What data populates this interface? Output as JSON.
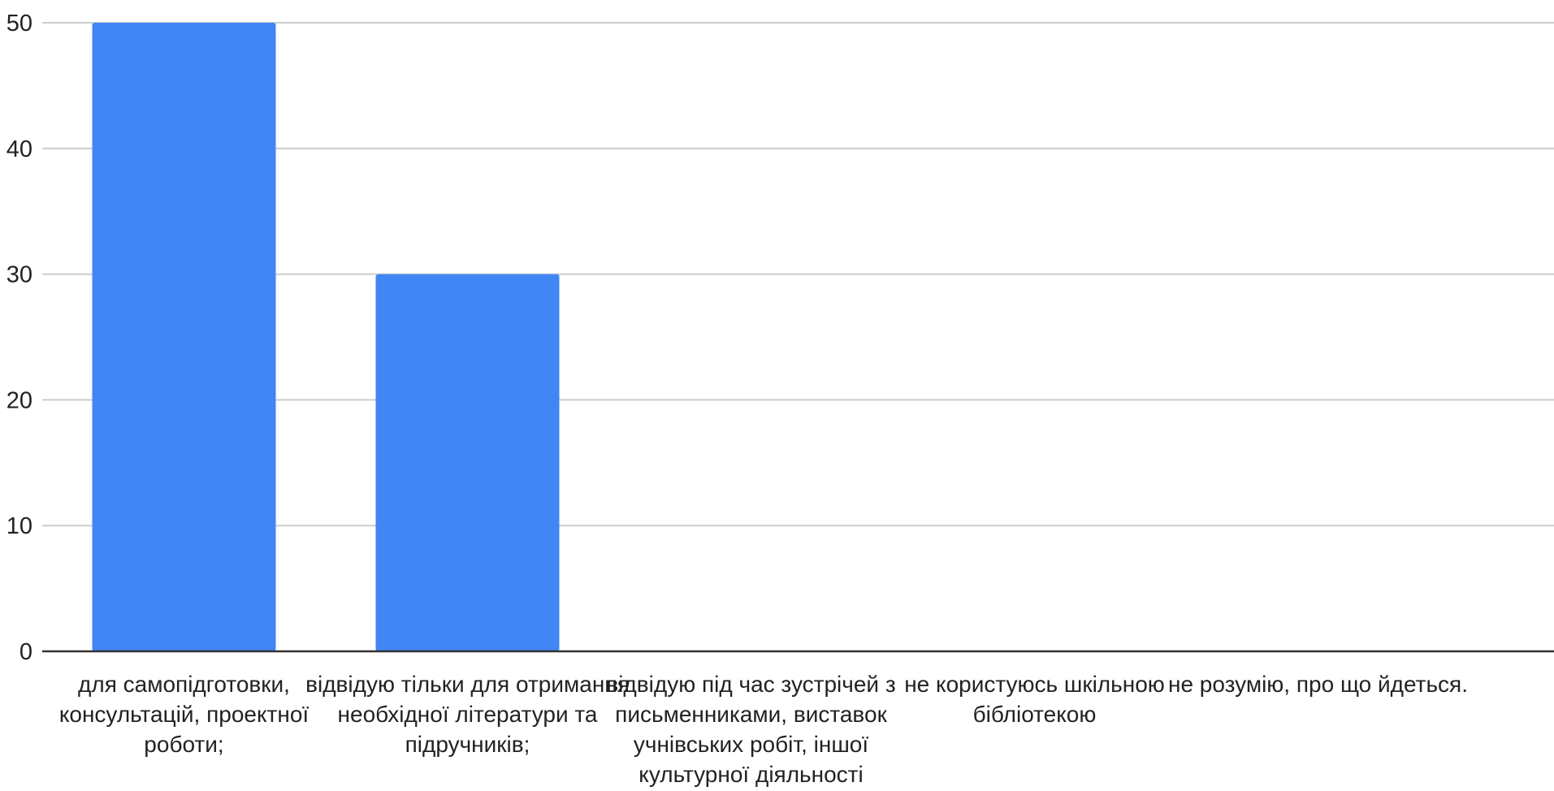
{
  "chart_data": {
    "type": "bar",
    "categories": [
      [
        "для самопідготовки,",
        "консультацій, проектної",
        "роботи;"
      ],
      [
        "відвідую тільки для отримання",
        "необхідної літератури та",
        "підручників;"
      ],
      [
        "відвідую під час зустрічей з",
        "письменниками, виставок",
        "учнівських робіт, іншої",
        "культурної діяльності"
      ],
      [
        "не користуюсь шкільною",
        "бібліотекою"
      ],
      [
        "не розумію, про що йдеться."
      ]
    ],
    "values": [
      50,
      30,
      0,
      0,
      0
    ],
    "ylim": [
      0,
      50
    ],
    "yticks": [
      "0",
      "10",
      "20",
      "30",
      "40",
      "50"
    ],
    "bar_color": "#4285f4",
    "grid": true
  }
}
